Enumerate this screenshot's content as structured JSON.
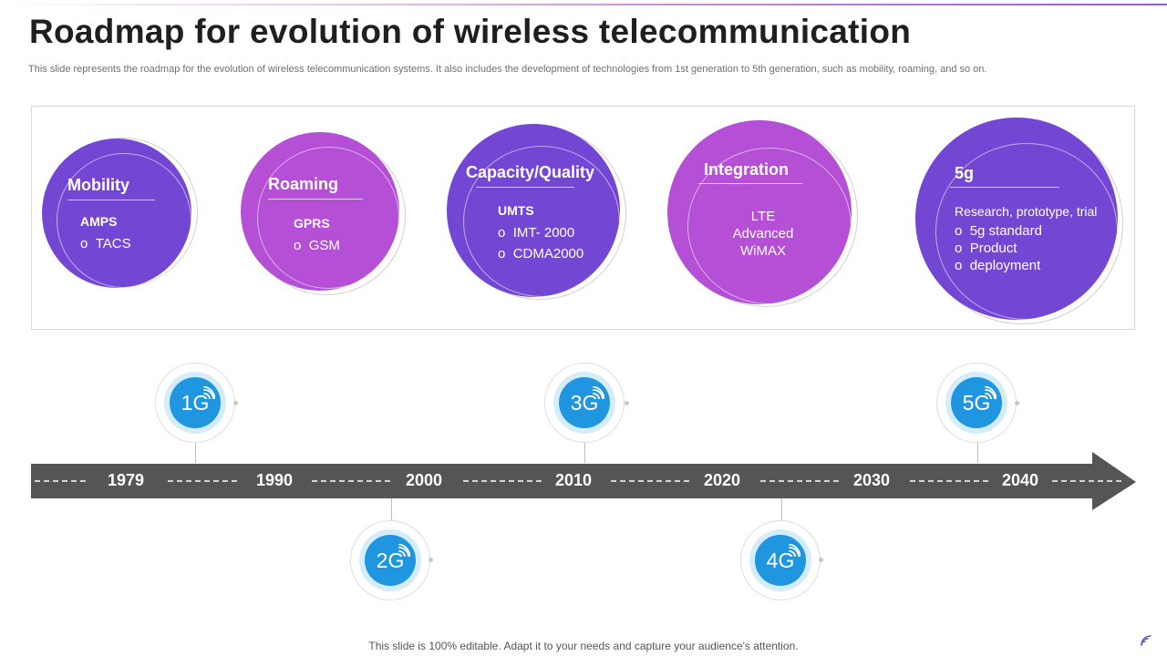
{
  "header": {
    "title": "Roadmap for evolution of wireless telecommunication",
    "subtitle": "This slide represents the roadmap for the evolution of wireless telecommunication systems. It also includes the development of technologies from 1st generation to 5th generation, such as mobility, roaming, and so on."
  },
  "stages": [
    {
      "heading": "Mobility",
      "subheading": "AMPS",
      "items": [
        "TACS"
      ],
      "color": "#7446d4"
    },
    {
      "heading": "Roaming",
      "subheading": "GPRS",
      "items": [
        "GSM"
      ],
      "color": "#b44fd6"
    },
    {
      "heading": "Capacity/Quality",
      "subheading": "UMTS",
      "items": [
        "IMT- 2000",
        "CDMA2000"
      ],
      "color": "#7446d4"
    },
    {
      "heading": "Integration",
      "lines": [
        "LTE",
        "Advanced",
        "WiMAX"
      ],
      "color": "#b44fd6"
    },
    {
      "heading": "5g",
      "intro": "Research, prototype, trial",
      "items": [
        "5g standard",
        "Product",
        "deployment"
      ],
      "color": "#7446d4"
    }
  ],
  "timeline": {
    "years": [
      "1979",
      "1990",
      "2000",
      "2010",
      "2020",
      "2030",
      "2040"
    ],
    "generations": [
      "1G",
      "2G",
      "3G",
      "4G",
      "5G"
    ],
    "arrow_color": "#555555",
    "badge_color": "#2096e0"
  },
  "footer": {
    "text": "This slide is 100% editable. Adapt it to your needs and capture your audience's attention."
  }
}
